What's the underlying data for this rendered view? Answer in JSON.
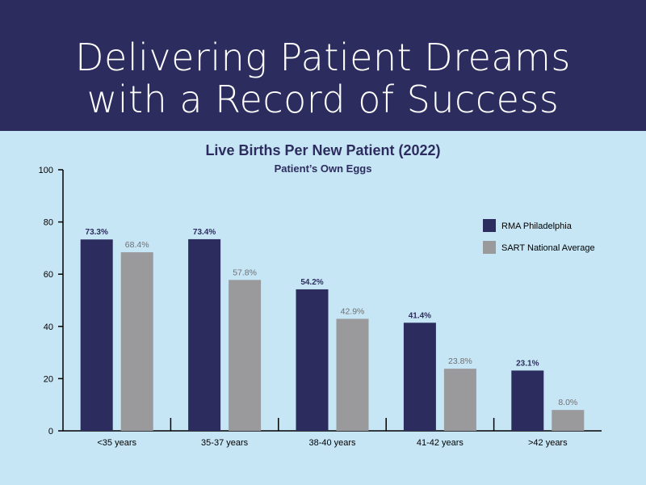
{
  "banner": {
    "line1": "Delivering Patient Dreams",
    "line2": "with a Record of Success"
  },
  "colors": {
    "banner_bg": "#2c2d5e",
    "panel_bg": "#c7e6f5",
    "rma": "#2c2d5e",
    "sart": "#9a9a9d"
  },
  "chart_data": {
    "type": "bar",
    "title": "Live Births Per New Patient (2022)",
    "subtitle": "Patient’s Own Eggs",
    "categories": [
      "<35 years",
      "35-37 years",
      "38-40 years",
      "41-42 years",
      ">42 years"
    ],
    "series": [
      {
        "name": "RMA Philadelphia",
        "values": [
          73.3,
          73.4,
          54.2,
          41.4,
          23.1
        ],
        "labels": [
          "73.3%",
          "73.4%",
          "54.2%",
          "41.4%",
          "23.1%"
        ]
      },
      {
        "name": "SART National Average",
        "values": [
          68.4,
          57.8,
          42.9,
          23.8,
          8.0
        ],
        "labels": [
          "68.4%",
          "57.8%",
          "42.9%",
          "23.8%",
          "8.0%"
        ]
      }
    ],
    "yticks": [
      "0",
      "20",
      "40",
      "60",
      "80",
      "100"
    ],
    "ylim": [
      0,
      100
    ],
    "grid": false,
    "legend_position": "right"
  }
}
